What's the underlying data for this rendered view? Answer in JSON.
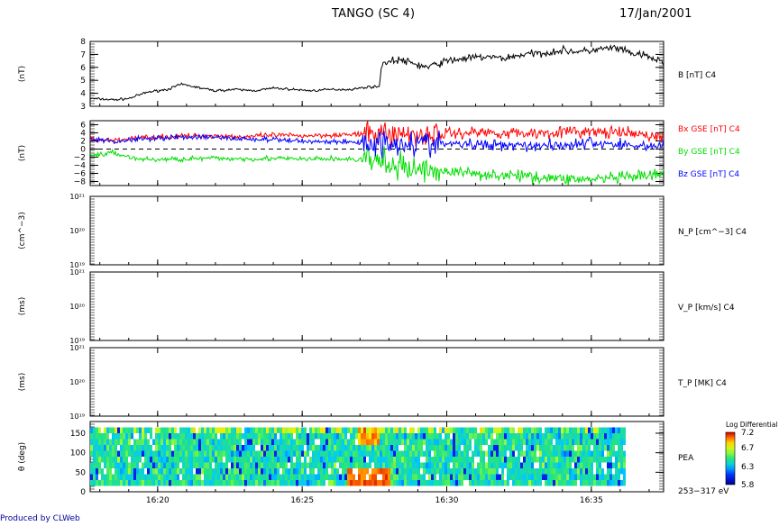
{
  "header": {
    "title": "TANGO (SC 4)",
    "date": "17/Jan/2001"
  },
  "footer": {
    "credit": "Produced by CLWeb"
  },
  "colors": {
    "bx": "#ff0000",
    "by": "#00dd00",
    "bz": "#0000ff",
    "b_total": "#000000"
  },
  "time_axis": {
    "start": "16:17:40",
    "end": "16:37:30",
    "tick_labels": [
      "16:20",
      "16:25",
      "16:30",
      "16:35"
    ],
    "tick_minutes": [
      20,
      25,
      30,
      35
    ]
  },
  "panels": [
    {
      "id": "btot",
      "ylabel": "(nT)",
      "right_labels": [
        {
          "text": "B [nT] C4",
          "color": "#000000"
        }
      ],
      "ylim": [
        3,
        8
      ],
      "tick_values": [
        3,
        4,
        5,
        6,
        7,
        8
      ],
      "tick_labels": [
        "3",
        "4",
        "5",
        "6",
        "7",
        "8"
      ]
    },
    {
      "id": "bgse",
      "ylabel": "(nT)",
      "right_labels": [
        {
          "text": "Bx GSE [nT] C4",
          "color": "#ff0000"
        },
        {
          "text": "By GSE [nT] C4",
          "color": "#00dd00"
        },
        {
          "text": "Bz GSE [nT] C4",
          "color": "#0000ff"
        }
      ],
      "ylim": [
        -9,
        7
      ],
      "tick_values": [
        6,
        4,
        2,
        0,
        -2,
        -4,
        -6,
        -8
      ],
      "tick_labels": [
        "6",
        "4",
        "2",
        "0",
        "−2",
        "−4",
        "−6",
        "−8"
      ],
      "dashed_zero": true
    },
    {
      "id": "np",
      "ylabel": "(cm^−3)",
      "right_labels": [
        {
          "text": "N_P [cm^−3] C4",
          "color": "#000000"
        }
      ],
      "log_ticks": [
        "10²¹",
        "10²⁰",
        "10¹⁹"
      ],
      "empty": true
    },
    {
      "id": "vp",
      "ylabel": "(ms)",
      "right_labels": [
        {
          "text": "V_P [km/s] C4",
          "color": "#000000"
        }
      ],
      "log_ticks": [
        "10²¹",
        "10²⁰",
        "10¹⁹"
      ],
      "empty": true
    },
    {
      "id": "tp",
      "ylabel": "(ms)",
      "right_labels": [
        {
          "text": "T_P [MK] C4",
          "color": "#000000"
        }
      ],
      "log_ticks": [
        "10²¹",
        "10²⁰",
        "10¹⁹"
      ],
      "empty": true
    },
    {
      "id": "pea",
      "ylabel": "θ (deg)",
      "right_labels": [
        {
          "text": "PEA",
          "color": "#000000"
        },
        {
          "text": "253−317 eV",
          "color": "#000000"
        }
      ],
      "ylim": [
        0,
        180
      ],
      "tick_values": [
        0,
        50,
        100,
        150
      ],
      "tick_labels": [
        "0",
        "50",
        "100",
        "150"
      ]
    }
  ],
  "colorbar": {
    "title": "Log Differential",
    "ticks": [
      "7.2",
      "6.7",
      "6.3",
      "5.8"
    ],
    "range": [
      5.8,
      7.2
    ]
  },
  "chart_data": {
    "type": "line",
    "x_unit": "UT (hh:mm)",
    "series": [
      {
        "name": "B [nT] C4",
        "panel": "btot",
        "x": [
          "16:17:40",
          "16:18:30",
          "16:19:00",
          "16:19:40",
          "16:20:20",
          "16:20:50",
          "16:21:30",
          "16:22:00",
          "16:22:40",
          "16:23:20",
          "16:24:00",
          "16:24:40",
          "16:25:20",
          "16:26:00",
          "16:26:40",
          "16:27:20",
          "16:27:40",
          "16:27:45",
          "16:28:20",
          "16:28:50",
          "16:29:20",
          "16:30:00",
          "16:30:40",
          "16:31:20",
          "16:32:00",
          "16:32:40",
          "16:33:20",
          "16:34:00",
          "16:34:40",
          "16:35:20",
          "16:35:50",
          "16:36:20",
          "16:36:50",
          "16:37:30"
        ],
        "values": [
          3.6,
          3.5,
          3.6,
          4.1,
          4.3,
          4.7,
          4.4,
          4.2,
          4.3,
          4.2,
          4.4,
          4.3,
          4.2,
          4.3,
          4.3,
          4.5,
          4.5,
          6.3,
          6.6,
          6.3,
          6.0,
          6.5,
          6.7,
          6.8,
          6.7,
          7.0,
          7.1,
          7.3,
          7.2,
          7.4,
          7.5,
          7.1,
          6.9,
          6.4
        ]
      },
      {
        "name": "Bx GSE [nT] C4",
        "panel": "bgse",
        "x": [
          "16:17:40",
          "16:18:30",
          "16:19:20",
          "16:20:10",
          "16:21:00",
          "16:22:00",
          "16:23:00",
          "16:24:00",
          "16:25:00",
          "16:26:00",
          "16:27:00",
          "16:27:40",
          "16:28:20",
          "16:29:00",
          "16:30:00",
          "16:31:00",
          "16:32:00",
          "16:33:00",
          "16:34:00",
          "16:35:00",
          "16:35:40",
          "16:36:20",
          "16:37:30"
        ],
        "values": [
          2.5,
          2.0,
          2.8,
          3.0,
          3.2,
          3.3,
          3.0,
          3.4,
          3.3,
          3.5,
          3.6,
          4.0,
          3.7,
          3.5,
          3.8,
          4.2,
          4.0,
          3.9,
          4.3,
          4.2,
          4.0,
          3.8,
          3.0
        ]
      },
      {
        "name": "By GSE [nT] C4",
        "panel": "bgse",
        "x": [
          "16:17:40",
          "16:18:30",
          "16:19:20",
          "16:20:10",
          "16:21:00",
          "16:22:00",
          "16:23:00",
          "16:24:00",
          "16:25:00",
          "16:26:00",
          "16:27:00",
          "16:27:40",
          "16:28:20",
          "16:29:00",
          "16:30:00",
          "16:31:00",
          "16:32:00",
          "16:33:00",
          "16:34:00",
          "16:35:00",
          "16:35:40",
          "16:36:20",
          "16:37:30"
        ],
        "values": [
          -1.5,
          -1.0,
          -2.5,
          -2.6,
          -2.4,
          -2.3,
          -2.4,
          -2.3,
          -2.5,
          -2.4,
          -2.6,
          -3.0,
          -4.5,
          -5.0,
          -5.5,
          -6.0,
          -6.5,
          -6.8,
          -7.3,
          -7.5,
          -7.2,
          -7.0,
          -6.3
        ]
      },
      {
        "name": "Bz GSE [nT] C4",
        "panel": "bgse",
        "x": [
          "16:17:40",
          "16:18:30",
          "16:19:20",
          "16:20:10",
          "16:21:00",
          "16:22:00",
          "16:23:00",
          "16:24:00",
          "16:25:00",
          "16:26:00",
          "16:27:00",
          "16:27:40",
          "16:28:20",
          "16:29:00",
          "16:30:00",
          "16:31:00",
          "16:32:00",
          "16:33:00",
          "16:34:00",
          "16:35:00",
          "16:35:40",
          "16:36:20",
          "16:37:30"
        ],
        "values": [
          2.5,
          1.8,
          2.6,
          2.8,
          3.0,
          2.9,
          2.5,
          2.3,
          2.0,
          1.8,
          1.7,
          1.5,
          1.6,
          1.4,
          1.3,
          1.0,
          1.2,
          0.9,
          1.0,
          1.5,
          1.3,
          0.9,
          0.8
        ]
      }
    ],
    "heatmap": {
      "name": "PEA",
      "panel": "pea",
      "energy": "253−317 eV",
      "y_range_deg": [
        0,
        180
      ],
      "data_span": [
        "16:17:40",
        "16:36:10"
      ],
      "value_range_log": [
        5.8,
        7.2
      ]
    }
  }
}
